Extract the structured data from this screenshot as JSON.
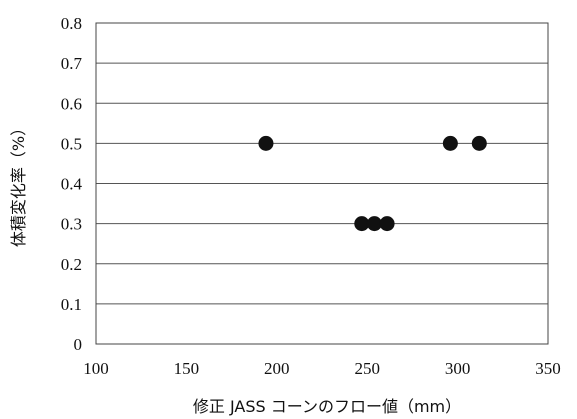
{
  "chart_data": {
    "type": "scatter",
    "title": "",
    "xlabel": "修正 JASS コーンのフロー値（mm）",
    "ylabel": "体積変化率（%）",
    "xlim": [
      100,
      350
    ],
    "ylim": [
      0,
      0.8
    ],
    "x_ticks": [
      100,
      150,
      200,
      250,
      300,
      350
    ],
    "y_ticks": [
      0,
      0.1,
      0.2,
      0.3,
      0.4,
      0.5,
      0.6,
      0.7,
      0.8
    ],
    "x_tick_labels": [
      "100",
      "150",
      "200",
      "250",
      "300",
      "350"
    ],
    "y_tick_labels": [
      "0",
      "0.1",
      "0.2",
      "0.3",
      "0.4",
      "0.5",
      "0.6",
      "0.7",
      "0.8"
    ],
    "grid": "horizontal",
    "legend": "none",
    "marker_color": "#111111",
    "series": [
      {
        "points": [
          {
            "x": 194,
            "y": 0.5
          },
          {
            "x": 247,
            "y": 0.3
          },
          {
            "x": 254,
            "y": 0.3
          },
          {
            "x": 261,
            "y": 0.3
          },
          {
            "x": 296,
            "y": 0.5
          },
          {
            "x": 312,
            "y": 0.5
          }
        ]
      }
    ]
  }
}
